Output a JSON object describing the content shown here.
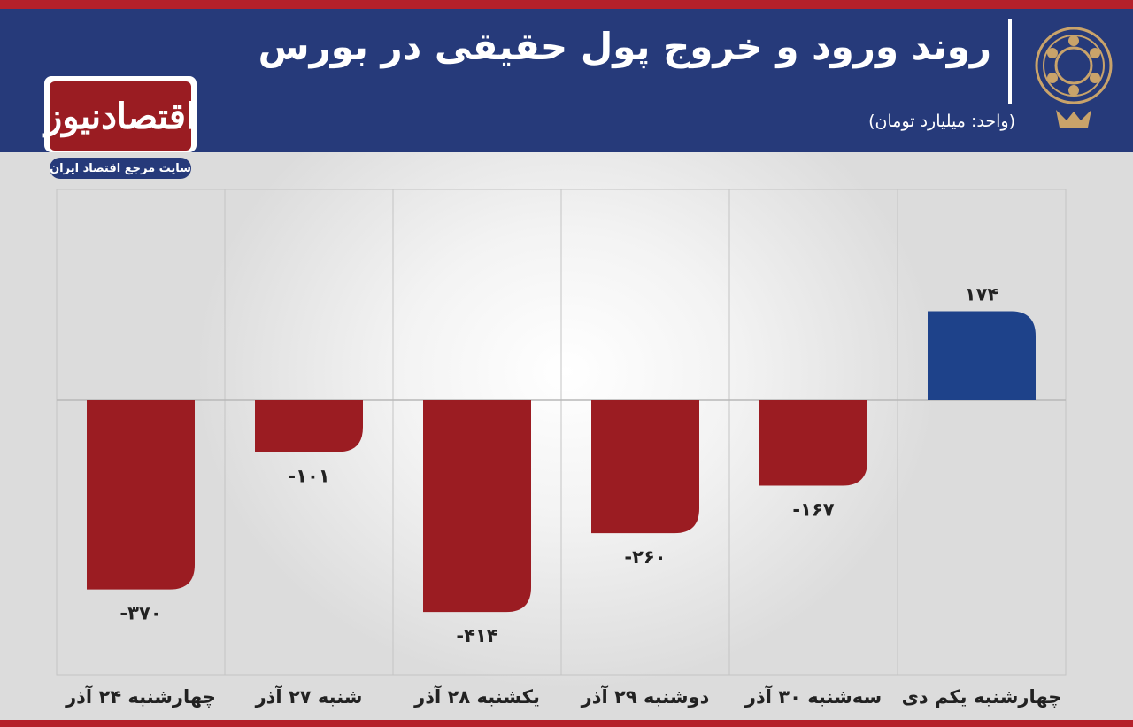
{
  "header": {
    "title": "روند ورود و خروج پول حقیقی در بورس",
    "unit": "(واحد: میلیارد تومان)"
  },
  "logo": {
    "name": "اقتصادنیوز",
    "tagline": "سایت مرجع اقتصاد ایران"
  },
  "colors": {
    "header_bg": "#263a7a",
    "accent_red": "#9b1c22",
    "positive_blue": "#1e428a",
    "stripe_red": "#b5202a"
  },
  "chart_data": {
    "type": "bar",
    "title": "روند ورود و خروج پول حقیقی در بورس",
    "ylabel": "",
    "xlabel": "",
    "grid": true,
    "ylim": [
      -420,
      420
    ],
    "categories": [
      "چهارشنبه ۲۴ آذر",
      "شنبه ۲۷ آذر",
      "یکشنبه ۲۸ آذر",
      "دوشنبه ۲۹ آذر",
      "سه‌شنبه ۳۰ آذر",
      "چهارشنبه یکم دی"
    ],
    "values": [
      -370,
      -101,
      -414,
      -260,
      -167,
      174
    ],
    "value_labels": [
      "-۳۷۰",
      "-۱۰۱",
      "-۴۱۴",
      "-۲۶۰",
      "-۱۶۷",
      "۱۷۴"
    ]
  }
}
